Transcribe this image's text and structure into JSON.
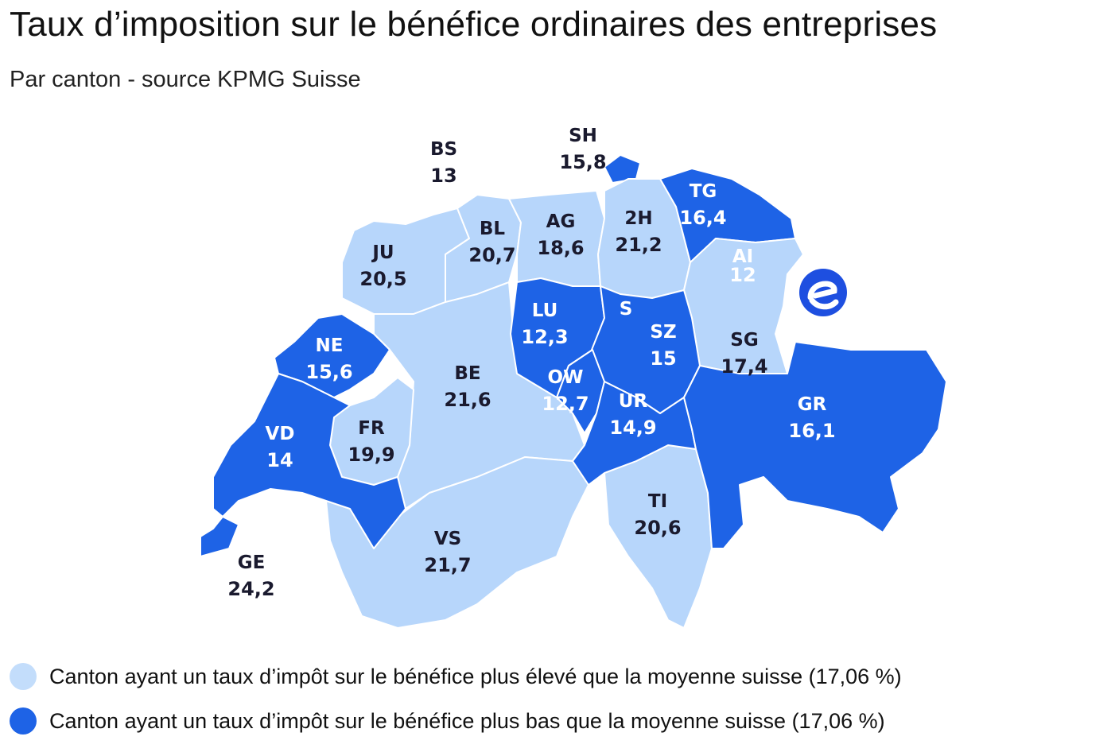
{
  "title": "Taux d’imposition sur le bénéfice ordinaires des entreprises",
  "subtitle": "Par canton - source KPMG Suisse",
  "colors": {
    "above_average": "#b7d6fb",
    "below_average": "#1e63e6",
    "border": "#ffffff",
    "label_text": "#1a1a2e",
    "label_text_on_dark": "#ffffff"
  },
  "map": {
    "logo_icon": "e-logo-icon",
    "cantons": [
      {
        "code": "BS",
        "value": "13",
        "group": "below_average"
      },
      {
        "code": "SH",
        "value": "15,8",
        "group": "below_average"
      },
      {
        "code": "TG",
        "value": "16,4",
        "group": "below_average"
      },
      {
        "code": "2H",
        "value": "21,2",
        "group": "above_average"
      },
      {
        "code": "AG",
        "value": "18,6",
        "group": "above_average"
      },
      {
        "code": "BL",
        "value": "20,7",
        "group": "above_average"
      },
      {
        "code": "JU",
        "value": "20,5",
        "group": "above_average"
      },
      {
        "code": "AI",
        "value": "12",
        "group": "below_average"
      },
      {
        "code": "LU",
        "value": "12,3",
        "group": "below_average"
      },
      {
        "code": "S",
        "value": "",
        "group": "below_average"
      },
      {
        "code": "SZ",
        "value": "15",
        "group": "below_average"
      },
      {
        "code": "SG",
        "value": "17,4",
        "group": "above_average"
      },
      {
        "code": "NE",
        "value": "15,6",
        "group": "below_average"
      },
      {
        "code": "BE",
        "value": "21,6",
        "group": "above_average"
      },
      {
        "code": "OW",
        "value": "12,7",
        "group": "below_average"
      },
      {
        "code": "UR",
        "value": "14,9",
        "group": "below_average"
      },
      {
        "code": "GR",
        "value": "16,1",
        "group": "below_average"
      },
      {
        "code": "VD",
        "value": "14",
        "group": "below_average"
      },
      {
        "code": "FR",
        "value": "19,9",
        "group": "above_average"
      },
      {
        "code": "TI",
        "value": "20,6",
        "group": "above_average"
      },
      {
        "code": "VS",
        "value": "21,7",
        "group": "above_average"
      },
      {
        "code": "GE",
        "value": "24,2",
        "group": "above_average"
      }
    ]
  },
  "legend": {
    "above": "Canton ayant un taux d’impôt sur le bénéfice plus élevé que la moyenne suisse (17,06 %)",
    "below": "Canton ayant un taux d’impôt sur le bénéfice plus bas que la moyenne suisse (17,06 %)"
  }
}
